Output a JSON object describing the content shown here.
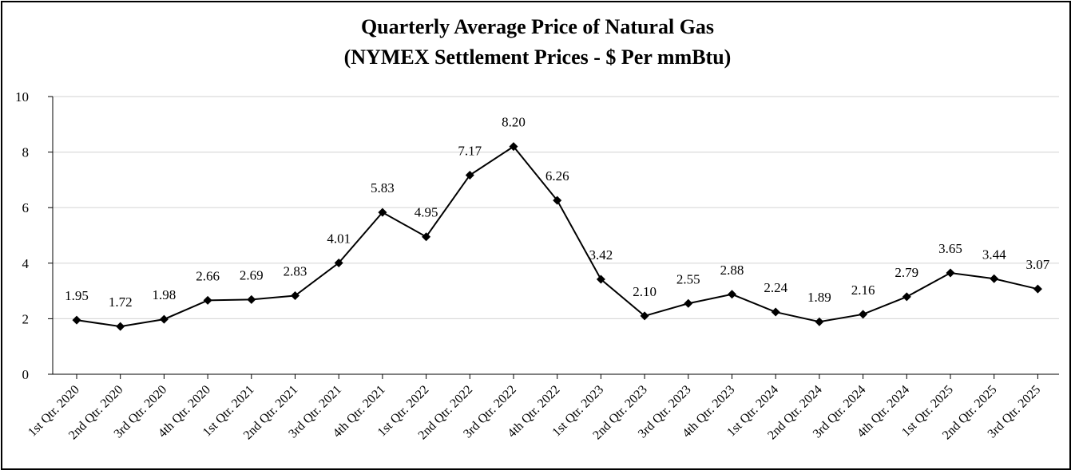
{
  "chart_data": {
    "type": "line",
    "title": "Quarterly Average Price of Natural Gas",
    "subtitle": "(NYMEX Settlement Prices - $ Per mmBtu)",
    "xlabel": "",
    "ylabel": "",
    "ylim": [
      0,
      10
    ],
    "yticks": [
      "0",
      "2",
      "4",
      "6",
      "8",
      "10"
    ],
    "grid": true,
    "legend": "none",
    "categories": [
      "1st Qtr. 2020",
      "2nd Qtr. 2020",
      "3rd Qtr. 2020",
      "4th Qtr. 2020",
      "1st Qtr. 2021",
      "2nd Qtr. 2021",
      "3rd Qtr. 2021",
      "4th Qtr. 2021",
      "1st Qtr. 2022",
      "2nd Qtr. 2022",
      "3rd Qtr. 2022",
      "4th Qtr. 2022",
      "1st Qtr. 2023",
      "2nd Qtr. 2023",
      "3rd Qtr. 2023",
      "4th Qtr. 2023",
      "1st Qtr. 2024",
      "2nd Qtr. 2024",
      "3rd Qtr. 2024",
      "4th Qtr. 2024",
      "1st Qtr. 2025",
      "2nd Qtr. 2025",
      "3rd Qtr. 2025"
    ],
    "series": [
      {
        "name": "NYMEX Settlement Price",
        "values": [
          1.95,
          1.72,
          1.98,
          2.66,
          2.69,
          2.83,
          4.01,
          5.83,
          4.95,
          7.17,
          8.2,
          6.26,
          3.42,
          2.1,
          2.55,
          2.88,
          2.24,
          1.89,
          2.16,
          2.79,
          3.65,
          3.44,
          3.07
        ],
        "labels": [
          "1.95",
          "1.72",
          "1.98",
          "2.66",
          "2.69",
          "2.83",
          "4.01",
          "5.83",
          "4.95",
          "7.17",
          "8.20",
          "6.26",
          "3.42",
          "2.10",
          "2.55",
          "2.88",
          "2.24",
          "1.89",
          "2.16",
          "2.79",
          "3.65",
          "3.44",
          "3.07"
        ]
      }
    ],
    "colors": {
      "line": "#000000",
      "marker": "#000000",
      "grid": "#d9d9d9",
      "axis": "#000000"
    }
  }
}
